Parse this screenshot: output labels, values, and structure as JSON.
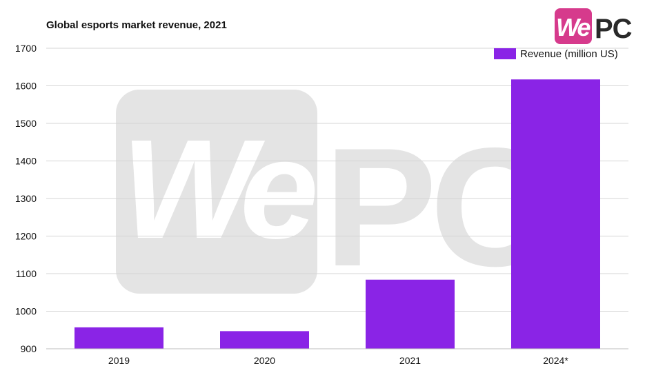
{
  "chart_data": {
    "type": "bar",
    "title": "Global esports market revenue, 2021",
    "categories": [
      "2019",
      "2020",
      "2021",
      "2024*"
    ],
    "series": [
      {
        "name": "Revenue (million US)",
        "values": [
          957,
          947,
          1084,
          1617
        ],
        "color": "#8a24e6"
      }
    ],
    "ylim": [
      900,
      1700
    ],
    "yticks": [
      900,
      1000,
      1100,
      1200,
      1300,
      1400,
      1500,
      1600,
      1700
    ],
    "grid": true,
    "legend_position": "top-right"
  },
  "logo": {
    "we": "We",
    "pc": "PC",
    "brand_color": "#d63a8c"
  },
  "watermark": {
    "text": "WePC",
    "color": "#e4e4e4"
  }
}
